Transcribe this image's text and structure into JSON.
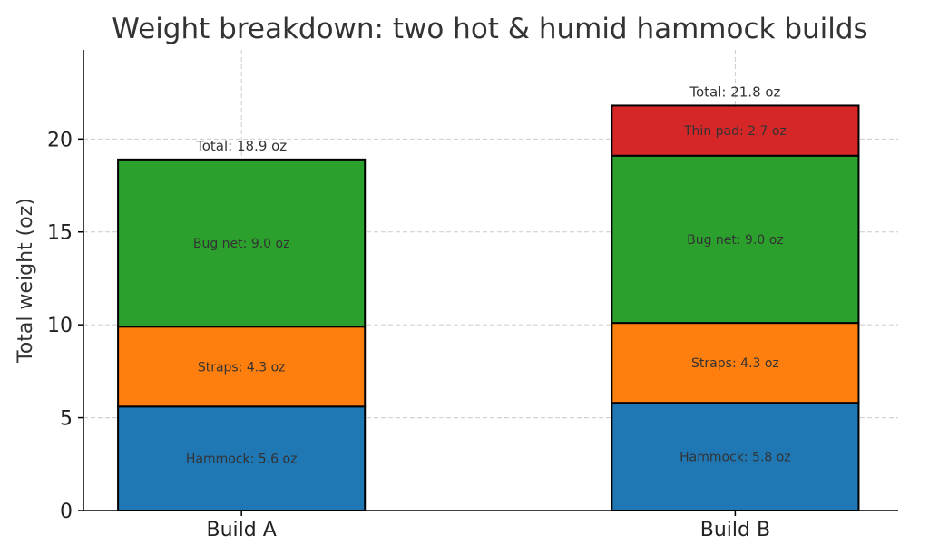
{
  "chart_data": {
    "type": "bar",
    "stacked": true,
    "title": "Weight breakdown: two hot & humid hammock builds",
    "xlabel": "",
    "ylabel": "Total weight (oz)",
    "categories": [
      "Build A",
      "Build B"
    ],
    "ylim": [
      0,
      24.8
    ],
    "yticks": [
      0,
      5,
      10,
      15,
      20
    ],
    "grid": true,
    "series": [
      {
        "component": "Hammock",
        "color": "#1f77b4",
        "values": [
          5.6,
          5.8
        ],
        "labels": [
          "Hammock: 5.6 oz",
          "Hammock: 5.8 oz"
        ]
      },
      {
        "component": "Straps",
        "color": "#ff7f0e",
        "values": [
          4.3,
          4.3
        ],
        "labels": [
          "Straps: 4.3 oz",
          "Straps: 4.3 oz"
        ]
      },
      {
        "component": "Bug net",
        "color": "#2ca02c",
        "values": [
          9.0,
          9.0
        ],
        "labels": [
          "Bug net: 9.0 oz",
          "Bug net: 9.0 oz"
        ]
      },
      {
        "component": "Thin pad",
        "color": "#d62728",
        "values": [
          0,
          2.7
        ],
        "labels": [
          "",
          "Thin pad: 2.7 oz"
        ]
      }
    ],
    "totals": [
      18.9,
      21.8
    ],
    "total_labels": [
      "Total: 18.9 oz",
      "Total: 21.8 oz"
    ]
  }
}
